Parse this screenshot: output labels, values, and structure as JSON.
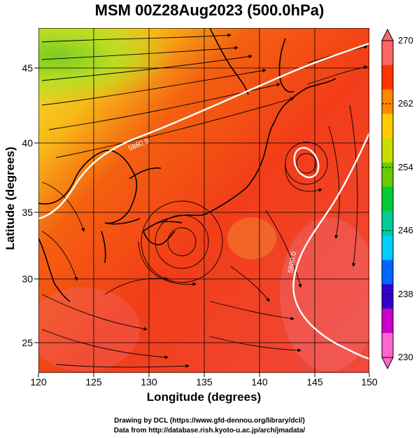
{
  "title": "MSM 00Z28Aug2023 (500.0hPa)",
  "x_axis": {
    "label": "Longitude (degrees)",
    "ticks": [
      "120",
      "125",
      "130",
      "135",
      "140",
      "145",
      "150"
    ]
  },
  "y_axis": {
    "label": "Latitude  (degrees)",
    "ticks": [
      "25",
      "30",
      "35",
      "40",
      "45"
    ]
  },
  "colorbar": {
    "ticks": [
      "270",
      "262",
      "254",
      "246",
      "238",
      "230"
    ],
    "colors": [
      "#ff66cc",
      "#cc00cc",
      "#3300cc",
      "#0066ff",
      "#00ccff",
      "#00cc99",
      "#00cc33",
      "#66cc00",
      "#ccdd00",
      "#ffcc00",
      "#ff8800",
      "#ff3300",
      "#ff6666"
    ]
  },
  "contour_labels": [
    "5880.0",
    "5880.0",
    "5880.0"
  ],
  "credits": {
    "line1": "Drawing by DCL (https://www.gfd-dennou.org/library/dcl/)",
    "line2": "Data from http://database.rish.kyoto-u.ac.jp/arch/jmadata/"
  }
}
